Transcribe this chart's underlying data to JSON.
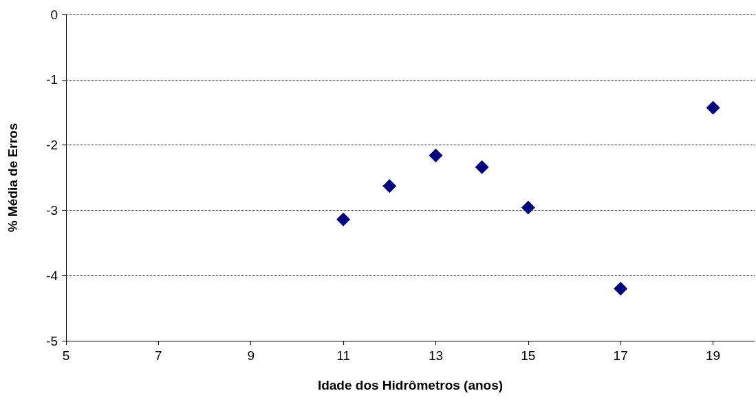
{
  "chart_data": {
    "type": "scatter",
    "xlabel": "Idade dos Hidrômetros (anos)",
    "ylabel": "% Média de Erros",
    "x": [
      11,
      12,
      13,
      14,
      15,
      17,
      19
    ],
    "values": [
      -3.14,
      -2.63,
      -2.16,
      -2.34,
      -2.96,
      -4.2,
      -1.43
    ],
    "color": "#000080",
    "marker": "diamond",
    "xlim": [
      5,
      19.9
    ],
    "xticks": [
      5,
      7,
      9,
      11,
      13,
      15,
      17,
      19
    ],
    "ylim": [
      -5,
      0
    ],
    "yticks": [
      -5,
      -4,
      -3,
      -2,
      -1,
      0
    ],
    "grid": "y"
  }
}
